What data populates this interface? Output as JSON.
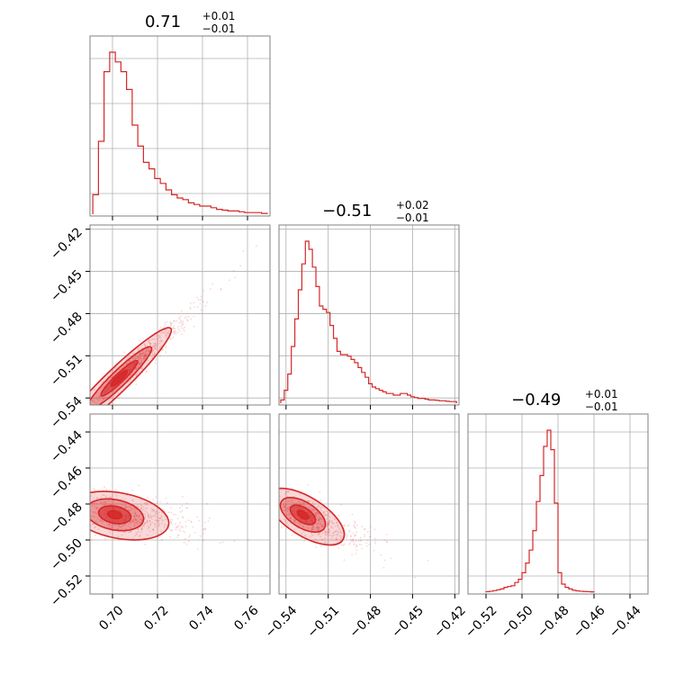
{
  "chart_data": {
    "type": "corner",
    "color": "#d62728",
    "grid": true,
    "parameters": [
      {
        "title": {
          "median": "0.71",
          "plus": "+0.01",
          "minus": "−0.01"
        },
        "range": [
          0.69,
          0.77
        ],
        "ticks": [
          0.7,
          0.72,
          0.74,
          0.76
        ],
        "tick_labels": [
          "0.70",
          "0.72",
          "0.74",
          "0.76"
        ],
        "hist_x": [
          0.6925,
          0.695,
          0.6975,
          0.7,
          0.7025,
          0.705,
          0.7075,
          0.71,
          0.7125,
          0.715,
          0.7175,
          0.72,
          0.7225,
          0.725,
          0.7275,
          0.73,
          0.7325,
          0.735,
          0.7375,
          0.74,
          0.7425,
          0.745,
          0.7475,
          0.75,
          0.7525,
          0.755,
          0.7575,
          0.76,
          0.7625,
          0.765,
          0.7675
        ],
        "hist_y": [
          0.12,
          0.45,
          0.88,
          1.0,
          0.94,
          0.88,
          0.77,
          0.55,
          0.42,
          0.32,
          0.28,
          0.22,
          0.19,
          0.15,
          0.12,
          0.1,
          0.09,
          0.07,
          0.06,
          0.05,
          0.05,
          0.04,
          0.03,
          0.025,
          0.02,
          0.02,
          0.015,
          0.01,
          0.01,
          0.01,
          0.005
        ]
      },
      {
        "title": {
          "median": "−0.51",
          "plus": "+0.02",
          "minus": "−0.01"
        },
        "range": [
          -0.545,
          -0.417
        ],
        "ticks": [
          -0.54,
          -0.51,
          -0.48,
          -0.45,
          -0.42
        ],
        "tick_labels": [
          "−0.54",
          "−0.51",
          "−0.48",
          "−0.45",
          "−0.42"
        ],
        "hist_x": [
          -0.5425,
          -0.54,
          -0.5375,
          -0.535,
          -0.5325,
          -0.53,
          -0.5275,
          -0.525,
          -0.5225,
          -0.52,
          -0.5175,
          -0.515,
          -0.5125,
          -0.51,
          -0.5075,
          -0.505,
          -0.5025,
          -0.5,
          -0.4975,
          -0.495,
          -0.4925,
          -0.49,
          -0.4875,
          -0.485,
          -0.4825,
          -0.48,
          -0.4775,
          -0.475,
          -0.4725,
          -0.47,
          -0.4675,
          -0.465,
          -0.4625,
          -0.46,
          -0.4575,
          -0.455,
          -0.4525,
          -0.45,
          -0.4475,
          -0.445,
          -0.4425,
          -0.44,
          -0.4375,
          -0.435,
          -0.4325,
          -0.43,
          -0.4275,
          -0.425,
          -0.4225,
          -0.42
        ],
        "hist_y": [
          0.02,
          0.08,
          0.18,
          0.35,
          0.52,
          0.7,
          0.86,
          1.0,
          0.95,
          0.84,
          0.72,
          0.6,
          0.58,
          0.56,
          0.48,
          0.4,
          0.32,
          0.3,
          0.3,
          0.29,
          0.27,
          0.25,
          0.22,
          0.19,
          0.16,
          0.12,
          0.1,
          0.09,
          0.08,
          0.07,
          0.06,
          0.06,
          0.05,
          0.05,
          0.06,
          0.06,
          0.05,
          0.04,
          0.035,
          0.03,
          0.03,
          0.025,
          0.02,
          0.02,
          0.018,
          0.015,
          0.015,
          0.012,
          0.01,
          0.01
        ]
      },
      {
        "title": {
          "median": "−0.49",
          "plus": "+0.01",
          "minus": "−0.01"
        },
        "range": [
          -0.53,
          -0.43
        ],
        "ticks": [
          -0.52,
          -0.5,
          -0.48,
          -0.46,
          -0.44
        ],
        "tick_labels": [
          "−0.52",
          "−0.50",
          "−0.48",
          "−0.46",
          "−0.44"
        ],
        "hist_x": [
          -0.519,
          -0.517,
          -0.515,
          -0.513,
          -0.511,
          -0.509,
          -0.507,
          -0.505,
          -0.503,
          -0.501,
          -0.499,
          -0.497,
          -0.495,
          -0.493,
          -0.491,
          -0.489,
          -0.487,
          -0.485,
          -0.483,
          -0.481,
          -0.479,
          -0.477,
          -0.475,
          -0.473,
          -0.471,
          -0.469,
          -0.467,
          -0.465,
          -0.463,
          -0.461
        ],
        "hist_y": [
          0.003,
          0.006,
          0.01,
          0.015,
          0.02,
          0.03,
          0.035,
          0.04,
          0.06,
          0.08,
          0.12,
          0.18,
          0.26,
          0.38,
          0.56,
          0.72,
          0.9,
          1.0,
          0.88,
          0.55,
          0.12,
          0.05,
          0.03,
          0.02,
          0.012,
          0.008,
          0.006,
          0.004,
          0.003,
          0.002
        ]
      }
    ],
    "pairs": [
      {
        "x_param": 0,
        "y_param": 1,
        "center": [
          0.703,
          -0.526
        ],
        "sigma": [
          0.009,
          0.014
        ],
        "rho": 0.94,
        "skew_tail": true
      },
      {
        "x_param": 0,
        "y_param": 2,
        "center": [
          0.701,
          -0.486
        ],
        "sigma": [
          0.008,
          0.0055
        ],
        "rho": -0.25,
        "skew_tail": true
      },
      {
        "x_param": 1,
        "y_param": 2,
        "center": [
          -0.528,
          -0.486
        ],
        "sigma": [
          0.01,
          0.006
        ],
        "rho": -0.55,
        "skew_tail": true
      }
    ]
  }
}
